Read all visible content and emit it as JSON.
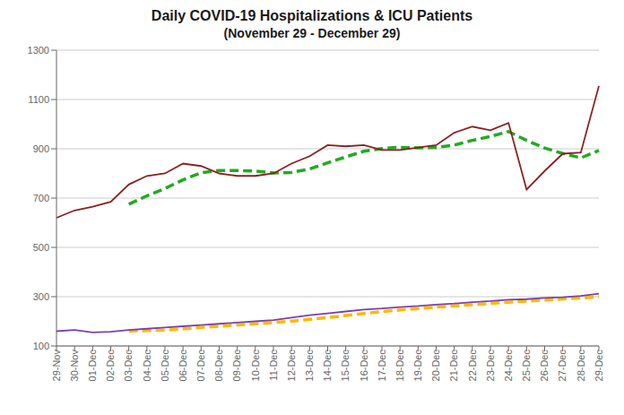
{
  "chart_data": {
    "type": "line",
    "title": "Daily COVID-19 Hospitalizations & ICU Patients",
    "subtitle": "(November 29 - December 29)",
    "categories": [
      "29-Nov",
      "30-Nov",
      "01-Dec",
      "02-Dec",
      "03-Dec",
      "04-Dec",
      "05-Dec",
      "06-Dec",
      "07-Dec",
      "08-Dec",
      "09-Dec",
      "10-Dec",
      "11-Dec",
      "12-Dec",
      "13-Dec",
      "14-Dec",
      "15-Dec",
      "16-Dec",
      "17-Dec",
      "18-Dec",
      "19-Dec",
      "20-Dec",
      "21-Dec",
      "22-Dec",
      "23-Dec",
      "24-Dec",
      "25-Dec",
      "26-Dec",
      "27-Dec",
      "28-Dec",
      "29-Dec"
    ],
    "series": [
      {
        "color": "#22aa22",
        "line_style": "dashed",
        "values": [
          null,
          null,
          null,
          null,
          675,
          709,
          739,
          774,
          803,
          812,
          812,
          810,
          802,
          804,
          818,
          843,
          867,
          890,
          901,
          906,
          904,
          905,
          915,
          934,
          950,
          970,
          934,
          903,
          881,
          863,
          893
        ]
      },
      {
        "color": "#8B2020",
        "line_style": "solid",
        "values": [
          620,
          650,
          665,
          685,
          755,
          790,
          800,
          840,
          830,
          800,
          790,
          790,
          800,
          840,
          870,
          915,
          910,
          915,
          895,
          895,
          905,
          915,
          965,
          990,
          975,
          1005,
          735,
          810,
          880,
          885,
          1155
        ]
      },
      {
        "color": "#FFB800",
        "line_style": "dashed",
        "values": [
          null,
          null,
          null,
          null,
          160.6,
          162.6,
          164.6,
          169.6,
          175,
          180,
          185,
          190,
          195,
          201,
          208,
          215.4,
          223.4,
          232,
          239.4,
          246,
          252,
          257.6,
          262.4,
          267.6,
          272.4,
          277.6,
          282,
          286.6,
          290.6,
          294.8,
          299.6
        ]
      },
      {
        "color": "#7B3FAD",
        "line_style": "solid",
        "values": [
          160,
          165,
          155,
          158,
          165,
          170,
          175,
          180,
          185,
          190,
          195,
          200,
          205,
          215,
          225,
          232,
          240,
          248,
          252,
          258,
          262,
          268,
          272,
          278,
          282,
          288,
          290,
          295,
          298,
          303,
          312
        ]
      }
    ],
    "ylim": [
      100,
      1300
    ],
    "yticks": [
      100,
      300,
      500,
      700,
      900,
      1100,
      1300
    ],
    "grid": true
  }
}
